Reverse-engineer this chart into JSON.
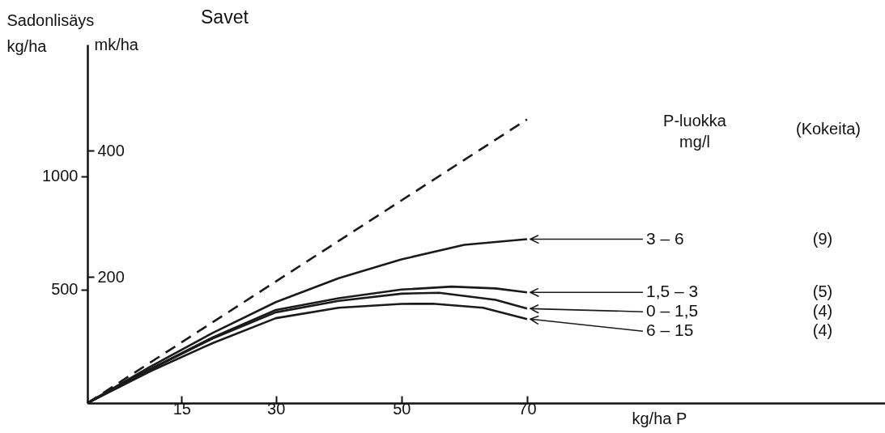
{
  "chart_data": {
    "type": "line",
    "title": "Savet",
    "ylabel": "Sadonlisäys\nkg/ha",
    "y2label": "mk/ha",
    "xlabel": "kg/ha  P",
    "legend_title": "P-luokka\nmg/l",
    "xlim": [
      0,
      127
    ],
    "xticks": [
      15,
      30,
      50,
      70
    ],
    "ylim": [
      0,
      1580
    ],
    "yticks": [
      500,
      1000
    ],
    "y2lim": [
      0,
      568
    ],
    "y2ticks": [
      200,
      400
    ],
    "grid": false,
    "series": [
      {
        "color": "#1a1a1a",
        "line_style": "dashed",
        "x": [
          0,
          70
        ],
        "values": [
          0,
          1250
        ]
      },
      {
        "name": "3 – 6",
        "color": "#1a1a1a",
        "line_style": "solid",
        "x": [
          0,
          10,
          20,
          30,
          40,
          50,
          60,
          70
        ],
        "values": [
          0,
          160,
          310,
          445,
          550,
          633,
          697,
          722
        ]
      },
      {
        "name": "1,5 – 3",
        "color": "#1a1a1a",
        "line_style": "solid",
        "x": [
          0,
          10,
          20,
          30,
          40,
          50,
          58,
          65,
          70
        ],
        "values": [
          0,
          150,
          290,
          410,
          462,
          500,
          513,
          505,
          488
        ]
      },
      {
        "name": "0 – 1,5",
        "color": "#1a1a1a",
        "line_style": "solid",
        "x": [
          0,
          10,
          20,
          30,
          40,
          50,
          56,
          65,
          70
        ],
        "values": [
          0,
          148,
          285,
          400,
          450,
          482,
          486,
          455,
          416
        ]
      },
      {
        "name": "6 – 15",
        "color": "#1a1a1a",
        "line_style": "solid",
        "x": [
          0,
          10,
          20,
          30,
          40,
          50,
          55,
          63,
          70
        ],
        "values": [
          0,
          140,
          265,
          374,
          420,
          437,
          438,
          420,
          370
        ]
      }
    ],
    "annotations": [
      "(Kokeita)",
      "(9)",
      "(5)",
      "(4)",
      "(4)"
    ]
  }
}
